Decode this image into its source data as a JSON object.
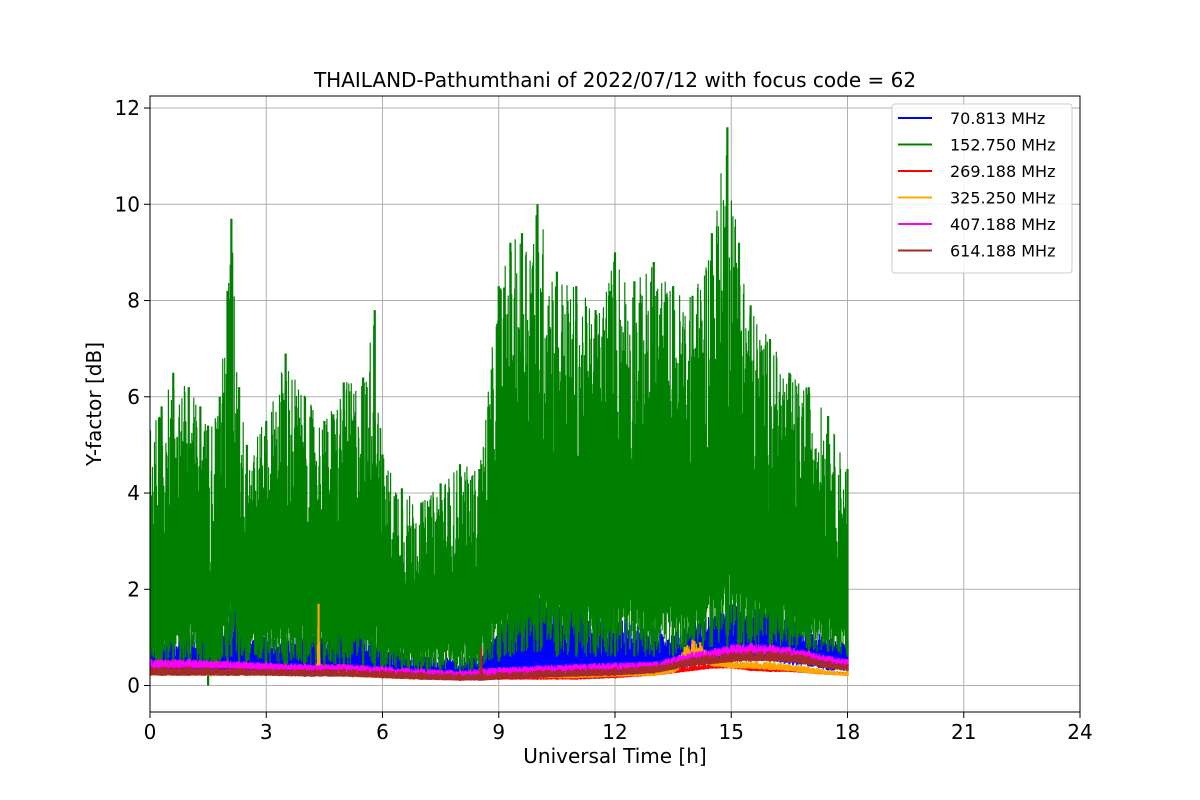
{
  "chart_data": {
    "type": "line",
    "title": "THAILAND-Pathumthani of 2022/07/12 with focus code = 62",
    "xlabel": "Universal Time [h]",
    "ylabel": "Y-factor [dB]",
    "xlim": [
      0,
      24
    ],
    "ylim": [
      -0.55,
      12.25
    ],
    "xticks": [
      "0",
      "3",
      "6",
      "9",
      "12",
      "15",
      "18",
      "21",
      "24"
    ],
    "yticks": [
      "0",
      "2",
      "4",
      "6",
      "8",
      "10",
      "12"
    ],
    "grid": true,
    "legend_position": "top-right",
    "series": [
      {
        "name": " 70.813 MHz",
        "color": "#0000ff",
        "x": [
          0,
          0.3,
          0.6,
          1.0,
          1.5,
          2.0,
          2.2,
          2.5,
          3.0,
          3.5,
          4.0,
          4.5,
          5.0,
          5.3,
          5.7,
          6.0,
          6.5,
          7.0,
          7.5,
          8.0,
          8.5,
          9.0,
          9.5,
          10.0,
          10.5,
          11.0,
          11.5,
          12.0,
          12.5,
          13.0,
          13.5,
          14.0,
          14.5,
          15.0,
          15.5,
          16.0,
          16.5,
          17.0,
          17.5,
          18.0
        ],
        "min": [
          0.2,
          0.2,
          0.2,
          0.2,
          0.2,
          0.2,
          0.2,
          0.2,
          0.2,
          0.2,
          0.2,
          0.2,
          0.2,
          0.2,
          0.2,
          0.2,
          0.2,
          0.15,
          0.15,
          0.15,
          0.15,
          0.2,
          0.2,
          0.2,
          0.2,
          0.2,
          0.2,
          0.2,
          0.2,
          0.2,
          0.3,
          0.4,
          0.5,
          0.5,
          0.5,
          0.5,
          0.4,
          0.4,
          0.3,
          0.3
        ],
        "max": [
          1.2,
          1.1,
          1.0,
          1.1,
          1.0,
          1.2,
          2.1,
          1.2,
          1.0,
          1.0,
          1.1,
          1.0,
          1.7,
          1.5,
          1.0,
          0.8,
          0.7,
          0.6,
          0.6,
          0.6,
          0.6,
          1.2,
          1.8,
          1.9,
          1.7,
          1.8,
          1.6,
          1.5,
          1.3,
          1.2,
          1.1,
          1.3,
          1.5,
          1.7,
          1.6,
          1.6,
          1.4,
          1.2,
          1.0,
          0.9
        ]
      },
      {
        "name": "152.750 MHz",
        "color": "#008000",
        "x": [
          0,
          0.3,
          0.6,
          1.0,
          1.3,
          1.5,
          1.8,
          2.0,
          2.1,
          2.3,
          2.5,
          3.0,
          3.5,
          4.0,
          4.5,
          5.0,
          5.5,
          5.8,
          6.0,
          6.5,
          7.0,
          7.5,
          8.0,
          8.5,
          9.0,
          9.3,
          9.6,
          10.0,
          10.5,
          11.0,
          11.5,
          12.0,
          12.5,
          13.0,
          13.5,
          14.0,
          14.5,
          14.9,
          15.2,
          15.5,
          16.0,
          16.5,
          17.0,
          17.5,
          18.0
        ],
        "min": [
          0.2,
          0.3,
          0.4,
          0.5,
          0.5,
          0.0,
          0.4,
          0.5,
          0.6,
          0.5,
          0.5,
          0.4,
          0.4,
          0.4,
          0.4,
          0.4,
          0.4,
          0.4,
          0.3,
          0.3,
          0.3,
          0.3,
          0.3,
          0.3,
          0.5,
          0.6,
          0.7,
          0.7,
          0.6,
          0.6,
          0.6,
          0.6,
          0.6,
          0.6,
          0.6,
          0.7,
          0.8,
          0.8,
          0.8,
          0.8,
          0.8,
          0.8,
          0.7,
          0.7,
          0.6
        ],
        "max": [
          5.3,
          5.8,
          6.5,
          6.2,
          5.8,
          5.4,
          6.0,
          8.2,
          9.7,
          6.2,
          5.0,
          5.5,
          6.9,
          6.0,
          5.5,
          6.3,
          6.4,
          7.8,
          4.8,
          4.1,
          3.8,
          4.2,
          4.6,
          4.5,
          8.3,
          9.2,
          9.4,
          10.0,
          8.6,
          8.3,
          7.8,
          9.0,
          8.4,
          8.8,
          8.3,
          8.1,
          9.4,
          11.6,
          9.2,
          7.9,
          7.2,
          6.5,
          6.2,
          5.6,
          4.5
        ]
      },
      {
        "name": "269.188 MHz",
        "color": "#ff0000",
        "x": [
          0,
          1,
          2,
          3,
          4,
          5,
          6,
          7,
          8,
          9,
          10,
          11,
          12,
          13,
          13.5,
          14,
          14.5,
          15,
          15.5,
          16,
          16.5,
          17,
          17.5,
          18
        ],
        "min": [
          0.25,
          0.25,
          0.25,
          0.22,
          0.2,
          0.2,
          0.15,
          0.12,
          0.1,
          0.12,
          0.12,
          0.12,
          0.15,
          0.2,
          0.25,
          0.3,
          0.35,
          0.35,
          0.3,
          0.28,
          0.28,
          0.25,
          0.22,
          0.2
        ],
        "max": [
          0.35,
          0.35,
          0.33,
          0.3,
          0.3,
          0.28,
          0.25,
          0.22,
          0.2,
          0.22,
          0.22,
          0.22,
          0.25,
          0.3,
          0.35,
          0.42,
          0.48,
          0.48,
          0.42,
          0.4,
          0.38,
          0.35,
          0.3,
          0.28
        ]
      },
      {
        "name": "325.250 MHz",
        "color": "#ffa500",
        "x": [
          0,
          1,
          2,
          3,
          4,
          4.3,
          4.35,
          4.4,
          5,
          6,
          7,
          8,
          9,
          10,
          11,
          12,
          13,
          13.5,
          13.8,
          14.0,
          14.2,
          14.5,
          15,
          15.5,
          16,
          16.5,
          17,
          17.5,
          18
        ],
        "min": [
          0.2,
          0.2,
          0.2,
          0.2,
          0.2,
          0.2,
          0.2,
          0.2,
          0.18,
          0.15,
          0.12,
          0.12,
          0.15,
          0.15,
          0.15,
          0.18,
          0.2,
          0.25,
          0.4,
          0.5,
          0.5,
          0.4,
          0.35,
          0.35,
          0.32,
          0.3,
          0.25,
          0.22,
          0.2
        ],
        "max": [
          0.35,
          0.35,
          0.33,
          0.32,
          0.3,
          0.3,
          1.7,
          0.3,
          0.3,
          0.28,
          0.25,
          0.22,
          0.25,
          0.25,
          0.25,
          0.28,
          0.3,
          0.45,
          0.8,
          0.95,
          0.9,
          0.6,
          0.5,
          0.5,
          0.5,
          0.45,
          0.4,
          0.32,
          0.3
        ]
      },
      {
        "name": "407.188 MHz",
        "color": "#ff00ff",
        "x": [
          0,
          1,
          2,
          3,
          4,
          5,
          6,
          7,
          8,
          9,
          10,
          11,
          12,
          13,
          14,
          15,
          15.5,
          16,
          16.5,
          17,
          17.5,
          18
        ],
        "min": [
          0.35,
          0.35,
          0.35,
          0.32,
          0.3,
          0.3,
          0.25,
          0.2,
          0.18,
          0.22,
          0.25,
          0.28,
          0.3,
          0.32,
          0.5,
          0.62,
          0.65,
          0.62,
          0.6,
          0.55,
          0.45,
          0.4
        ],
        "max": [
          0.55,
          0.55,
          0.52,
          0.48,
          0.45,
          0.45,
          0.4,
          0.35,
          0.32,
          0.38,
          0.42,
          0.45,
          0.48,
          0.5,
          0.7,
          0.85,
          0.88,
          0.85,
          0.8,
          0.72,
          0.62,
          0.55
        ]
      },
      {
        "name": "614.188 MHz",
        "color": "#a52a2a",
        "x": [
          0,
          1,
          2,
          3,
          4,
          5,
          6,
          7,
          8,
          8.5,
          8.55,
          8.6,
          9,
          10,
          11,
          12,
          13,
          14,
          15,
          15.5,
          16,
          16.5,
          17,
          17.5,
          18
        ],
        "min": [
          0.2,
          0.2,
          0.2,
          0.2,
          0.18,
          0.18,
          0.15,
          0.12,
          0.1,
          0.1,
          0.1,
          0.1,
          0.12,
          0.15,
          0.18,
          0.2,
          0.25,
          0.4,
          0.48,
          0.5,
          0.5,
          0.48,
          0.42,
          0.35,
          0.3
        ],
        "max": [
          0.4,
          0.4,
          0.38,
          0.36,
          0.35,
          0.35,
          0.32,
          0.28,
          0.25,
          0.25,
          0.8,
          0.25,
          0.28,
          0.32,
          0.35,
          0.38,
          0.42,
          0.6,
          0.7,
          0.72,
          0.72,
          0.7,
          0.62,
          0.52,
          0.45
        ]
      }
    ]
  }
}
